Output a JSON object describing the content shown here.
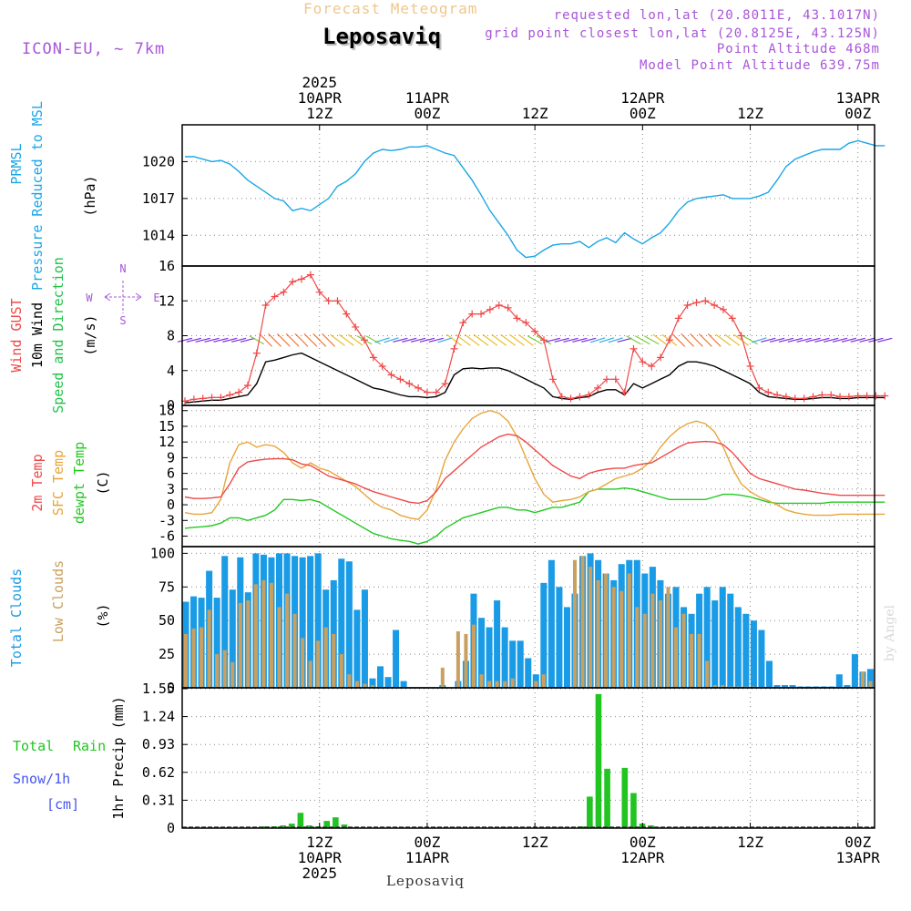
{
  "header": {
    "forecast_title": "Forecast Meteogram",
    "station": "Leposaviq",
    "model": "ICON-EU, ~ 7km",
    "requested": "requested lon,lat (20.8011E, 43.1017N)",
    "grid_point": "grid point closest lon,lat (20.8125E, 43.125N)",
    "point_altitude": "Point Altitude 468m",
    "model_altitude": "Model Point Altitude 639.75m",
    "credit": "by Angel",
    "footer": "Leposaviq"
  },
  "colors": {
    "pressure": "#1aa6e6",
    "gust": "#f04848",
    "wind": "#000000",
    "direction": "#22c24a",
    "compass": "#a855d8",
    "temp2m": "#f04848",
    "sfc": "#e8a53a",
    "dewpt": "#22c922",
    "clouds_total": "#1a9be6",
    "clouds_low": "#c9a060",
    "rain": "#22c422",
    "snow": "#4455ee"
  },
  "chart_data": {
    "type": "meteogram",
    "time_axis": {
      "start": "2025-04-09T21Z",
      "end": "2025-04-13T08Z",
      "top_labels": [
        {
          "at": 15,
          "lines": [
            "2025",
            "10APR",
            "12Z"
          ]
        },
        {
          "at": 27,
          "lines": [
            "11APR",
            "00Z"
          ]
        },
        {
          "at": 39,
          "lines": [
            "12Z"
          ]
        },
        {
          "at": 51,
          "lines": [
            "12APR",
            "00Z"
          ]
        },
        {
          "at": 63,
          "lines": [
            "12Z"
          ]
        },
        {
          "at": 75,
          "lines": [
            "13APR",
            "00Z"
          ]
        }
      ],
      "bottom_labels": [
        {
          "at": 15,
          "lines": [
            "12Z",
            "10APR",
            "2025"
          ]
        },
        {
          "at": 27,
          "lines": [
            "00Z",
            "11APR"
          ]
        },
        {
          "at": 39,
          "lines": [
            "12Z"
          ]
        },
        {
          "at": 51,
          "lines": [
            "00Z",
            "12APR"
          ]
        },
        {
          "at": 63,
          "lines": [
            "12Z"
          ]
        },
        {
          "at": 75,
          "lines": [
            "00Z",
            "13APR"
          ]
        }
      ]
    },
    "pressure": {
      "labels": [
        "PRMSL",
        "Pressure Reduced to MSL"
      ],
      "unit": "(hPa)",
      "ylim": [
        1011.5,
        1023.0
      ],
      "yticks": [
        1014,
        1017,
        1020
      ],
      "values": [
        1020.4,
        1020.4,
        1020.2,
        1020.0,
        1020.1,
        1019.8,
        1019.2,
        1018.5,
        1018.0,
        1017.5,
        1017.0,
        1016.8,
        1016.0,
        1016.2,
        1016.0,
        1016.5,
        1017.0,
        1018.0,
        1018.4,
        1019.0,
        1020.0,
        1020.7,
        1021.0,
        1020.9,
        1021.0,
        1021.2,
        1021.2,
        1021.3,
        1021.0,
        1020.7,
        1020.5,
        1019.5,
        1018.5,
        1017.3,
        1016.0,
        1015.0,
        1014.0,
        1012.8,
        1012.2,
        1012.3,
        1012.8,
        1013.2,
        1013.3,
        1013.3,
        1013.5,
        1013.0,
        1013.5,
        1013.8,
        1013.4,
        1014.2,
        1013.7,
        1013.3,
        1013.8,
        1014.2,
        1015.0,
        1016.0,
        1016.7,
        1017.0,
        1017.1,
        1017.2,
        1017.3,
        1017.0,
        1017.0,
        1017.0,
        1017.2,
        1017.5,
        1018.5,
        1019.6,
        1020.2,
        1020.5,
        1020.8,
        1021.0,
        1021.0,
        1021.0,
        1021.5,
        1021.7,
        1021.5,
        1021.3,
        1021.3
      ]
    },
    "wind": {
      "labels_gust": "Wind GUST",
      "labels_wind": "10m Wind",
      "labels_dir": "Speed and Direction",
      "unit": "(m/s)",
      "compass": {
        "n": "N",
        "s": "S",
        "w": "W",
        "e": "E"
      },
      "ylim": [
        0,
        16
      ],
      "yticks": [
        0,
        4,
        8,
        12,
        16
      ],
      "gust": [
        0.5,
        0.7,
        0.8,
        0.9,
        0.9,
        1.2,
        1.5,
        2.3,
        6.0,
        11.5,
        12.5,
        13.0,
        14.2,
        14.5,
        15.0,
        13.0,
        12.0,
        12.0,
        10.5,
        9.0,
        7.5,
        5.5,
        4.5,
        3.5,
        3.0,
        2.5,
        2.0,
        1.5,
        1.5,
        2.5,
        6.5,
        9.5,
        10.5,
        10.5,
        11.0,
        11.5,
        11.2,
        10.0,
        9.5,
        8.5,
        7.5,
        3.0,
        1.0,
        0.8,
        1.0,
        1.2,
        2.0,
        3.0,
        3.0,
        1.5,
        6.5,
        5.0,
        4.5,
        5.5,
        7.5,
        10.0,
        11.5,
        11.8,
        12.0,
        11.5,
        11.0,
        10.0,
        8.0,
        4.5,
        2.0,
        1.5,
        1.2,
        1.0,
        0.8,
        0.8,
        1.0,
        1.2,
        1.2,
        1.0,
        1.0,
        1.1,
        1.1,
        1.1,
        1.1
      ],
      "speed": [
        0.3,
        0.4,
        0.5,
        0.6,
        0.6,
        0.8,
        1.0,
        1.2,
        2.5,
        5.0,
        5.2,
        5.5,
        5.8,
        6.0,
        5.5,
        5.0,
        4.5,
        4.0,
        3.5,
        3.0,
        2.5,
        2.0,
        1.8,
        1.5,
        1.2,
        1.0,
        1.0,
        0.9,
        1.0,
        1.5,
        3.5,
        4.2,
        4.3,
        4.2,
        4.3,
        4.3,
        4.0,
        3.5,
        3.0,
        2.5,
        2.0,
        1.0,
        0.8,
        0.7,
        0.9,
        1.0,
        1.5,
        1.8,
        1.8,
        1.2,
        2.5,
        2.0,
        2.5,
        3.0,
        3.5,
        4.5,
        5.0,
        5.0,
        4.8,
        4.5,
        4.0,
        3.5,
        3.0,
        2.5,
        1.5,
        1.0,
        0.9,
        0.8,
        0.7,
        0.7,
        0.8,
        0.9,
        0.9,
        0.8,
        0.8,
        0.9,
        0.9,
        0.9,
        0.9
      ]
    },
    "temperature": {
      "labels": [
        "2m Temp",
        "SFC Temp",
        "dewpt Temp"
      ],
      "unit": "(C)",
      "ylim": [
        -8,
        19
      ],
      "yticks": [
        -6,
        -3,
        0,
        3,
        6,
        9,
        12,
        15,
        18
      ],
      "t2m": [
        1.5,
        1.2,
        1.2,
        1.3,
        1.5,
        4.0,
        7.0,
        8.2,
        8.5,
        8.7,
        8.8,
        8.8,
        8.6,
        7.8,
        7.5,
        6.5,
        5.5,
        5.0,
        4.5,
        4.0,
        3.2,
        2.5,
        2.0,
        1.5,
        1.0,
        0.5,
        0.3,
        0.8,
        2.5,
        5.0,
        6.5,
        8.0,
        9.5,
        11.0,
        12.0,
        13.0,
        13.5,
        13.2,
        12.0,
        10.5,
        9.0,
        7.5,
        6.5,
        5.5,
        5.0,
        6.0,
        6.5,
        6.8,
        7.0,
        7.0,
        7.5,
        7.8,
        8.0,
        9.0,
        10.0,
        11.0,
        11.8,
        12.0,
        12.1,
        12.0,
        11.5,
        10.0,
        8.0,
        6.0,
        5.0,
        4.5,
        4.0,
        3.5,
        3.0,
        2.8,
        2.5,
        2.2,
        2.0,
        1.8,
        1.8,
        1.8,
        1.8,
        1.8,
        1.8
      ],
      "sfc": [
        -1.5,
        -1.8,
        -1.8,
        -1.5,
        1.0,
        8.0,
        11.5,
        12.0,
        11.0,
        11.5,
        11.2,
        10.0,
        8.0,
        7.0,
        8.0,
        7.0,
        6.5,
        5.5,
        4.5,
        3.5,
        2.0,
        0.5,
        -0.5,
        -1.0,
        -2.0,
        -2.5,
        -2.8,
        -1.0,
        3.0,
        8.5,
        12.0,
        14.5,
        16.5,
        17.5,
        18.0,
        17.5,
        16.0,
        13.0,
        9.0,
        5.0,
        2.0,
        0.5,
        0.8,
        1.0,
        1.5,
        2.5,
        3.0,
        4.0,
        5.0,
        5.5,
        6.0,
        7.0,
        8.5,
        11.0,
        13.0,
        14.5,
        15.5,
        16.0,
        15.5,
        14.0,
        11.0,
        7.0,
        4.0,
        2.5,
        1.5,
        0.8,
        0.0,
        -1.0,
        -1.5,
        -1.8,
        -2.0,
        -2.0,
        -2.0,
        -1.8,
        -1.8,
        -1.8,
        -1.8,
        -1.8,
        -1.8
      ],
      "dewpt": [
        -4.5,
        -4.3,
        -4.2,
        -4.0,
        -3.5,
        -2.5,
        -2.5,
        -3.0,
        -2.5,
        -2.0,
        -1.0,
        1.0,
        1.0,
        0.8,
        1.0,
        0.5,
        -0.5,
        -1.5,
        -2.5,
        -3.5,
        -4.5,
        -5.5,
        -6.0,
        -6.5,
        -6.8,
        -7.0,
        -7.5,
        -7.0,
        -6.0,
        -4.5,
        -3.5,
        -2.5,
        -2.0,
        -1.5,
        -1.0,
        -0.5,
        -0.5,
        -1.0,
        -1.0,
        -1.5,
        -1.0,
        -0.5,
        -0.5,
        0.0,
        0.5,
        2.5,
        3.0,
        3.0,
        3.0,
        3.2,
        3.0,
        2.5,
        2.0,
        1.5,
        1.0,
        1.0,
        1.0,
        1.0,
        1.0,
        1.5,
        2.0,
        2.0,
        1.8,
        1.5,
        1.0,
        0.5,
        0.3,
        0.3,
        0.3,
        0.3,
        0.3,
        0.3,
        0.5,
        0.5,
        0.5,
        0.5,
        0.5,
        0.5,
        0.5
      ]
    },
    "clouds": {
      "labels": [
        "Total Clouds",
        "Low Clouds"
      ],
      "unit": "(%)",
      "ylim": [
        0,
        105
      ],
      "yticks": [
        0,
        25,
        50,
        75,
        100
      ],
      "total": [
        64,
        68,
        67,
        87,
        67,
        98,
        73,
        97,
        71,
        100,
        99,
        97,
        100,
        100,
        98,
        97,
        98,
        100,
        73,
        80,
        96,
        94,
        58,
        73,
        7,
        16,
        8,
        43,
        5,
        0,
        0,
        0,
        0,
        2,
        0,
        5,
        20,
        70,
        52,
        45,
        65,
        45,
        35,
        35,
        22,
        10,
        78,
        95,
        75,
        60,
        70,
        98,
        100,
        95,
        85,
        80,
        92,
        95,
        95,
        85,
        90,
        80,
        70,
        75,
        60,
        55,
        70,
        75,
        65,
        75,
        70,
        60,
        55,
        50,
        43,
        20,
        2,
        2,
        2,
        1,
        1,
        1,
        1,
        1,
        10,
        2,
        25,
        12,
        14
      ],
      "low": [
        40,
        44,
        45,
        58,
        25,
        28,
        19,
        63,
        65,
        77,
        80,
        78,
        60,
        70,
        55,
        37,
        20,
        35,
        45,
        40,
        25,
        10,
        5,
        3,
        2,
        0,
        0,
        0,
        0,
        0,
        0,
        0,
        0,
        15,
        0,
        42,
        40,
        47,
        10,
        5,
        5,
        5,
        7,
        0,
        0,
        5,
        10,
        0,
        0,
        0,
        95,
        98,
        90,
        80,
        85,
        75,
        72,
        85,
        60,
        55,
        70,
        65,
        75,
        45,
        55,
        40,
        40,
        20,
        2,
        2,
        1,
        1,
        1,
        1,
        0,
        0,
        0,
        0,
        0,
        0,
        0,
        0,
        0,
        0,
        0,
        0,
        0,
        12,
        5
      ]
    },
    "precip": {
      "labels": [
        "Total",
        "Rain",
        "Snow/1h",
        "[cm]"
      ],
      "unit": "1hr Precip (mm)",
      "ylim": [
        0,
        1.56
      ],
      "yticks": [
        0,
        0.31,
        0.62,
        0.93,
        1.24,
        1.55
      ],
      "rain": [
        0,
        0,
        0,
        0,
        0,
        0,
        0,
        0,
        0.01,
        0.02,
        0.02,
        0.03,
        0.05,
        0.17,
        0.03,
        0.02,
        0.08,
        0.12,
        0.04,
        0.01,
        0,
        0,
        0,
        0,
        0,
        0,
        0,
        0,
        0,
        0,
        0,
        0,
        0,
        0,
        0,
        0,
        0,
        0,
        0,
        0,
        0,
        0,
        0,
        0,
        0,
        0.02,
        0.35,
        1.49,
        0.66,
        0.01,
        0.67,
        0.39,
        0.05,
        0.03,
        0.01,
        0,
        0,
        0,
        0,
        0,
        0,
        0,
        0,
        0,
        0,
        0,
        0,
        0,
        0,
        0,
        0,
        0,
        0,
        0,
        0,
        0,
        0,
        0,
        0
      ],
      "snow": [
        0,
        0,
        0,
        0,
        0,
        0,
        0,
        0,
        0,
        0,
        0,
        0,
        0,
        0,
        0,
        0,
        0,
        0,
        0,
        0,
        0,
        0,
        0,
        0,
        0,
        0,
        0,
        0,
        0,
        0,
        0,
        0,
        0,
        0,
        0,
        0,
        0,
        0,
        0,
        0,
        0,
        0,
        0,
        0,
        0,
        0,
        0,
        0,
        0,
        0,
        0,
        0,
        0,
        0,
        0,
        0,
        0,
        0,
        0,
        0,
        0,
        0,
        0,
        0,
        0,
        0,
        0,
        0,
        0,
        0,
        0,
        0,
        0,
        0,
        0,
        0,
        0,
        0,
        0
      ]
    }
  }
}
